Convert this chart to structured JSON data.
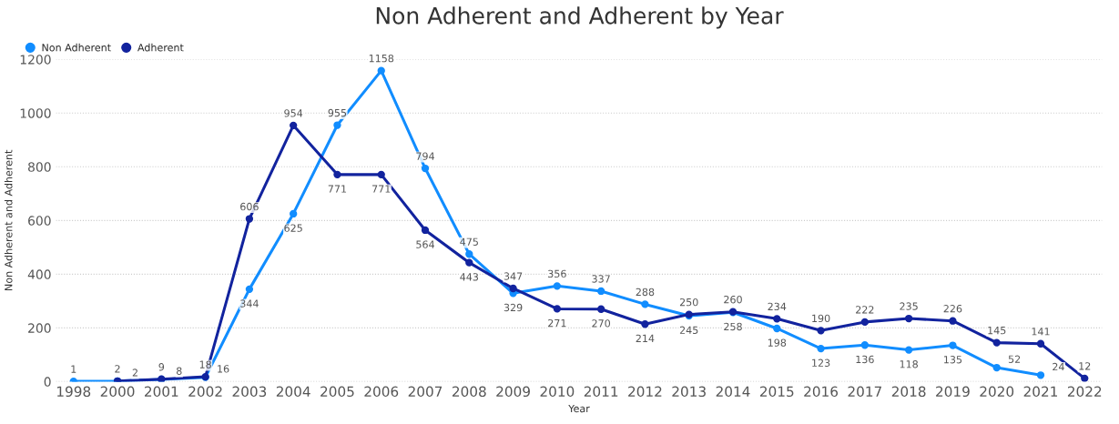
{
  "chart_data": {
    "type": "line",
    "title": "Non Adherent and Adherent by Year",
    "xlabel": "Year",
    "ylabel": "Non Adherent and Adherent",
    "categories": [
      "1998",
      "2000",
      "2001",
      "2002",
      "2003",
      "2004",
      "2005",
      "2006",
      "2007",
      "2008",
      "2009",
      "2010",
      "2011",
      "2012",
      "2013",
      "2014",
      "2015",
      "2016",
      "2017",
      "2018",
      "2019",
      "2020",
      "2021",
      "2022"
    ],
    "series": [
      {
        "name": "Non Adherent",
        "color": "#118dff",
        "values": [
          1,
          2,
          8,
          16,
          344,
          625,
          955,
          1158,
          794,
          475,
          329,
          356,
          337,
          288,
          245,
          258,
          198,
          123,
          136,
          118,
          135,
          52,
          24,
          null
        ]
      },
      {
        "name": "Adherent",
        "color": "#12239e",
        "values": [
          null,
          2,
          9,
          18,
          606,
          954,
          771,
          771,
          564,
          443,
          347,
          271,
          270,
          214,
          250,
          260,
          234,
          190,
          222,
          235,
          226,
          145,
          141,
          12
        ]
      }
    ],
    "ylim": [
      0,
      1200
    ],
    "yticks": [
      0,
      200,
      400,
      600,
      800,
      1000,
      1200
    ],
    "grid": "y",
    "legend": "top left",
    "marker": "circle",
    "line_style": "solid",
    "data_labels": true
  }
}
